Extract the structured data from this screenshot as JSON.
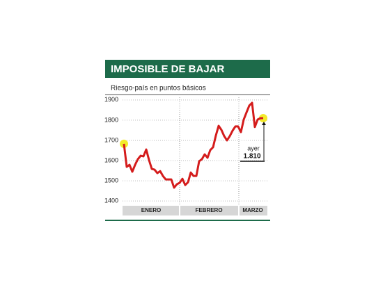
{
  "chart_data": {
    "type": "line",
    "title": "IMPOSIBLE DE BAJAR",
    "subtitle": "Riesgo-país en puntos básicos",
    "months": [
      "ENERO",
      "FEBRERO",
      "MARZO"
    ],
    "annotation": "ayer",
    "color": "#d41c1c",
    "highlight_color": "#f3ea2a",
    "header_color": "#1d6b4a",
    "values": [
      1683,
      1569,
      1579,
      1545,
      1579,
      1607,
      1624,
      1621,
      1655,
      1603,
      1559,
      1555,
      1538,
      1548,
      1524,
      1507,
      1507,
      1507,
      1466,
      1483,
      1490,
      1510,
      1479,
      1493,
      1541,
      1524,
      1524,
      1597,
      1607,
      1631,
      1614,
      1652,
      1666,
      1724,
      1772,
      1752,
      1721,
      1700,
      1721,
      1748,
      1769,
      1769,
      1741,
      1803,
      1838,
      1872,
      1886,
      1766,
      1803,
      1810,
      1810
    ],
    "value_labels": [
      null,
      null,
      null,
      null,
      null,
      null,
      null,
      null,
      null,
      null,
      null,
      null,
      null,
      null,
      null,
      null,
      null,
      null,
      null,
      null,
      null,
      null,
      null,
      null,
      null,
      null,
      null,
      null,
      null,
      null,
      null,
      null,
      null,
      null,
      null,
      null,
      null,
      null,
      null,
      null,
      null,
      null,
      null,
      null,
      null,
      null,
      null,
      null,
      null,
      null,
      "1.810"
    ],
    "ylim": [
      1380,
      1920
    ],
    "yticks": [
      1400,
      1500,
      1600,
      1700,
      1800,
      1900
    ]
  }
}
